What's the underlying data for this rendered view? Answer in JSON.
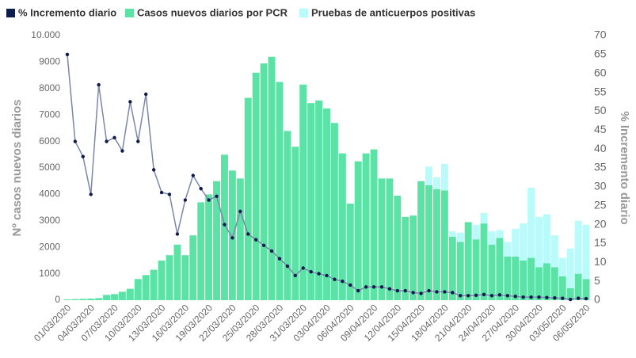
{
  "chart_data": {
    "type": "bar",
    "stacked": true,
    "legend": "top-left",
    "ylabel": "Nº casos nuevos diarios",
    "y2label": "% Incremento diario",
    "categories": [
      "01/03/2020",
      null,
      null,
      "04/03/2020",
      null,
      null,
      "07/03/2020",
      null,
      null,
      "10/03/2020",
      null,
      null,
      "13/03/2020",
      null,
      null,
      "16/03/2020",
      null,
      null,
      "19/03/2020",
      null,
      null,
      "22/03/2020",
      null,
      null,
      "25/03/2020",
      null,
      null,
      "28/03/2020",
      null,
      null,
      "31/03/2020",
      null,
      null,
      "03/04/2020",
      null,
      null,
      "06/04/2020",
      null,
      null,
      "09/04/2020",
      null,
      null,
      "12/04/2020",
      null,
      null,
      "15/04/2020",
      null,
      null,
      "18/04/2020",
      null,
      null,
      "21/04/2020",
      null,
      null,
      "24/04/2020",
      null,
      null,
      "27/04/2020",
      null,
      null,
      "30/04/2020",
      null,
      null,
      "03/05/2020",
      null,
      null,
      "06/05/2020"
    ],
    "series": [
      {
        "name": "% Incremento diario",
        "color": "#0d1b4d",
        "type": "line",
        "axis": "y2",
        "values": [
          65,
          42,
          38,
          28,
          57,
          42,
          43,
          39.5,
          52.5,
          42,
          54.5,
          34.5,
          28.5,
          28,
          17.5,
          26.5,
          33,
          29.5,
          26.5,
          27.5,
          20,
          16.5,
          23.5,
          17.5,
          16,
          14.5,
          13,
          11,
          9,
          6.5,
          8.5,
          7.5,
          7,
          6.5,
          5.5,
          5,
          4,
          2.5,
          3.5,
          3.5,
          3.5,
          3,
          2.5,
          2.5,
          2,
          1.8,
          2.5,
          2.2,
          2.2,
          2,
          1.2,
          1.2,
          1.3,
          1.5,
          1.2,
          1.4,
          1.2,
          1,
          0.8,
          0.8,
          0.8,
          0.7,
          0.6,
          0.5,
          0.2,
          0.5,
          0.4
        ]
      },
      {
        "name": "Casos nuevos diarios por PCR",
        "color": "#5be3a5",
        "type": "bar",
        "values": [
          30,
          40,
          50,
          60,
          80,
          200,
          230,
          320,
          430,
          800,
          950,
          1150,
          1500,
          1700,
          2100,
          1700,
          2450,
          3700,
          4000,
          4500,
          5500,
          4900,
          4600,
          7650,
          8600,
          8950,
          9200,
          8250,
          6400,
          5800,
          8150,
          7450,
          7550,
          7250,
          6700,
          5550,
          3650,
          5250,
          5550,
          5700,
          4600,
          4600,
          3950,
          3150,
          3200,
          4500,
          4350,
          4200,
          4150,
          2400,
          2200,
          2950,
          2300,
          2900,
          2100,
          2350,
          1650,
          1650,
          1500,
          1600,
          1250,
          1400,
          1250,
          900,
          450,
          1000,
          800
        ]
      },
      {
        "name": "Pruebas de anticuerpos positivas",
        "color": "#b9fafa",
        "type": "bar",
        "values": [
          0,
          0,
          0,
          0,
          0,
          0,
          0,
          0,
          0,
          0,
          0,
          0,
          0,
          0,
          0,
          0,
          0,
          0,
          0,
          0,
          0,
          0,
          0,
          0,
          0,
          0,
          0,
          0,
          0,
          0,
          0,
          0,
          0,
          0,
          0,
          0,
          0,
          0,
          0,
          0,
          0,
          0,
          0,
          0,
          0,
          0,
          700,
          450,
          1000,
          200,
          350,
          0,
          550,
          400,
          500,
          300,
          550,
          1050,
          1400,
          2650,
          1900,
          1850,
          1200,
          700,
          1500,
          2000,
          2050
        ]
      }
    ],
    "ylim": [
      0,
      10000
    ],
    "yticks": [
      0,
      1000,
      2000,
      3000,
      4000,
      5000,
      6000,
      7000,
      8000,
      9000,
      {
        "value": 10000,
        "label": "10.000"
      }
    ],
    "y2lim": [
      0,
      70
    ],
    "y2ticks": [
      0,
      5,
      10,
      15,
      20,
      25,
      30,
      35,
      40,
      45,
      50,
      55,
      60,
      65,
      70
    ]
  }
}
